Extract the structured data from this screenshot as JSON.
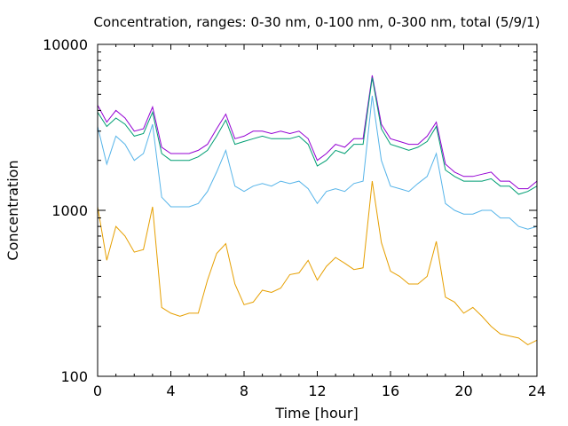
{
  "chart_data": {
    "type": "line",
    "title": "Concentration, ranges: 0-30 nm, 0-100 nm, 0-300 nm, total (5/9/1)",
    "xlabel": "Time [hour]",
    "ylabel": "Concentration",
    "xlim": [
      0,
      24
    ],
    "ylim": [
      100,
      10000
    ],
    "yscale": "log",
    "grid": false,
    "x_ticks": [
      0,
      4,
      8,
      12,
      16,
      20,
      24
    ],
    "x_tick_labels": [
      "0",
      "4",
      "8",
      "12",
      "16",
      "20",
      "24"
    ],
    "y_ticks": [
      100,
      1000,
      10000
    ],
    "y_tick_labels": [
      "100",
      "1000",
      "10000"
    ],
    "x": [
      0,
      0.5,
      1,
      1.5,
      2,
      2.5,
      3,
      3.5,
      4,
      4.5,
      5,
      5.5,
      6,
      6.5,
      7,
      7.5,
      8,
      8.5,
      9,
      9.5,
      10,
      10.5,
      11,
      11.5,
      12,
      12.5,
      13,
      13.5,
      14,
      14.5,
      15,
      15.5,
      16,
      16.5,
      17,
      17.5,
      18,
      18.5,
      19,
      19.5,
      20,
      20.5,
      21,
      21.5,
      22,
      22.5,
      23,
      23.5,
      24
    ],
    "series": [
      {
        "color": "#9400d3",
        "values": [
          4300,
          3400,
          4000,
          3600,
          3000,
          3100,
          4200,
          2400,
          2200,
          2200,
          2200,
          2300,
          2500,
          3100,
          3800,
          2700,
          2800,
          3000,
          3000,
          2900,
          3000,
          2900,
          3000,
          2700,
          2000,
          2200,
          2500,
          2400,
          2700,
          2700,
          6500,
          3300,
          2700,
          2600,
          2500,
          2500,
          2800,
          3400,
          1900,
          1700,
          1600,
          1600,
          1650,
          1700,
          1500,
          1500,
          1350,
          1350,
          1500
        ]
      },
      {
        "color": "#009e73",
        "values": [
          3900,
          3200,
          3600,
          3300,
          2800,
          2900,
          3900,
          2200,
          2000,
          2000,
          2000,
          2100,
          2300,
          2800,
          3500,
          2500,
          2600,
          2700,
          2800,
          2700,
          2700,
          2700,
          2800,
          2500,
          1850,
          2000,
          2300,
          2200,
          2500,
          2500,
          6300,
          3100,
          2500,
          2400,
          2300,
          2400,
          2600,
          3200,
          1750,
          1600,
          1500,
          1500,
          1500,
          1550,
          1400,
          1400,
          1250,
          1300,
          1400
        ]
      },
      {
        "color": "#56b4e9",
        "values": [
          3200,
          1900,
          2800,
          2500,
          2000,
          2200,
          3300,
          1200,
          1050,
          1050,
          1050,
          1100,
          1300,
          1700,
          2300,
          1400,
          1300,
          1400,
          1450,
          1400,
          1500,
          1450,
          1500,
          1350,
          1100,
          1300,
          1350,
          1300,
          1450,
          1500,
          4900,
          2000,
          1400,
          1350,
          1300,
          1450,
          1600,
          2200,
          1100,
          1000,
          950,
          950,
          1000,
          1000,
          900,
          900,
          800,
          770,
          800
        ]
      },
      {
        "color": "#e69f00",
        "values": [
          1050,
          500,
          800,
          700,
          560,
          580,
          1050,
          260,
          240,
          230,
          240,
          240,
          380,
          550,
          630,
          360,
          270,
          280,
          330,
          320,
          340,
          410,
          420,
          500,
          380,
          460,
          520,
          480,
          440,
          450,
          1500,
          640,
          430,
          400,
          360,
          360,
          400,
          650,
          300,
          280,
          240,
          260,
          230,
          200,
          180,
          175,
          170,
          155,
          165
        ]
      }
    ]
  }
}
